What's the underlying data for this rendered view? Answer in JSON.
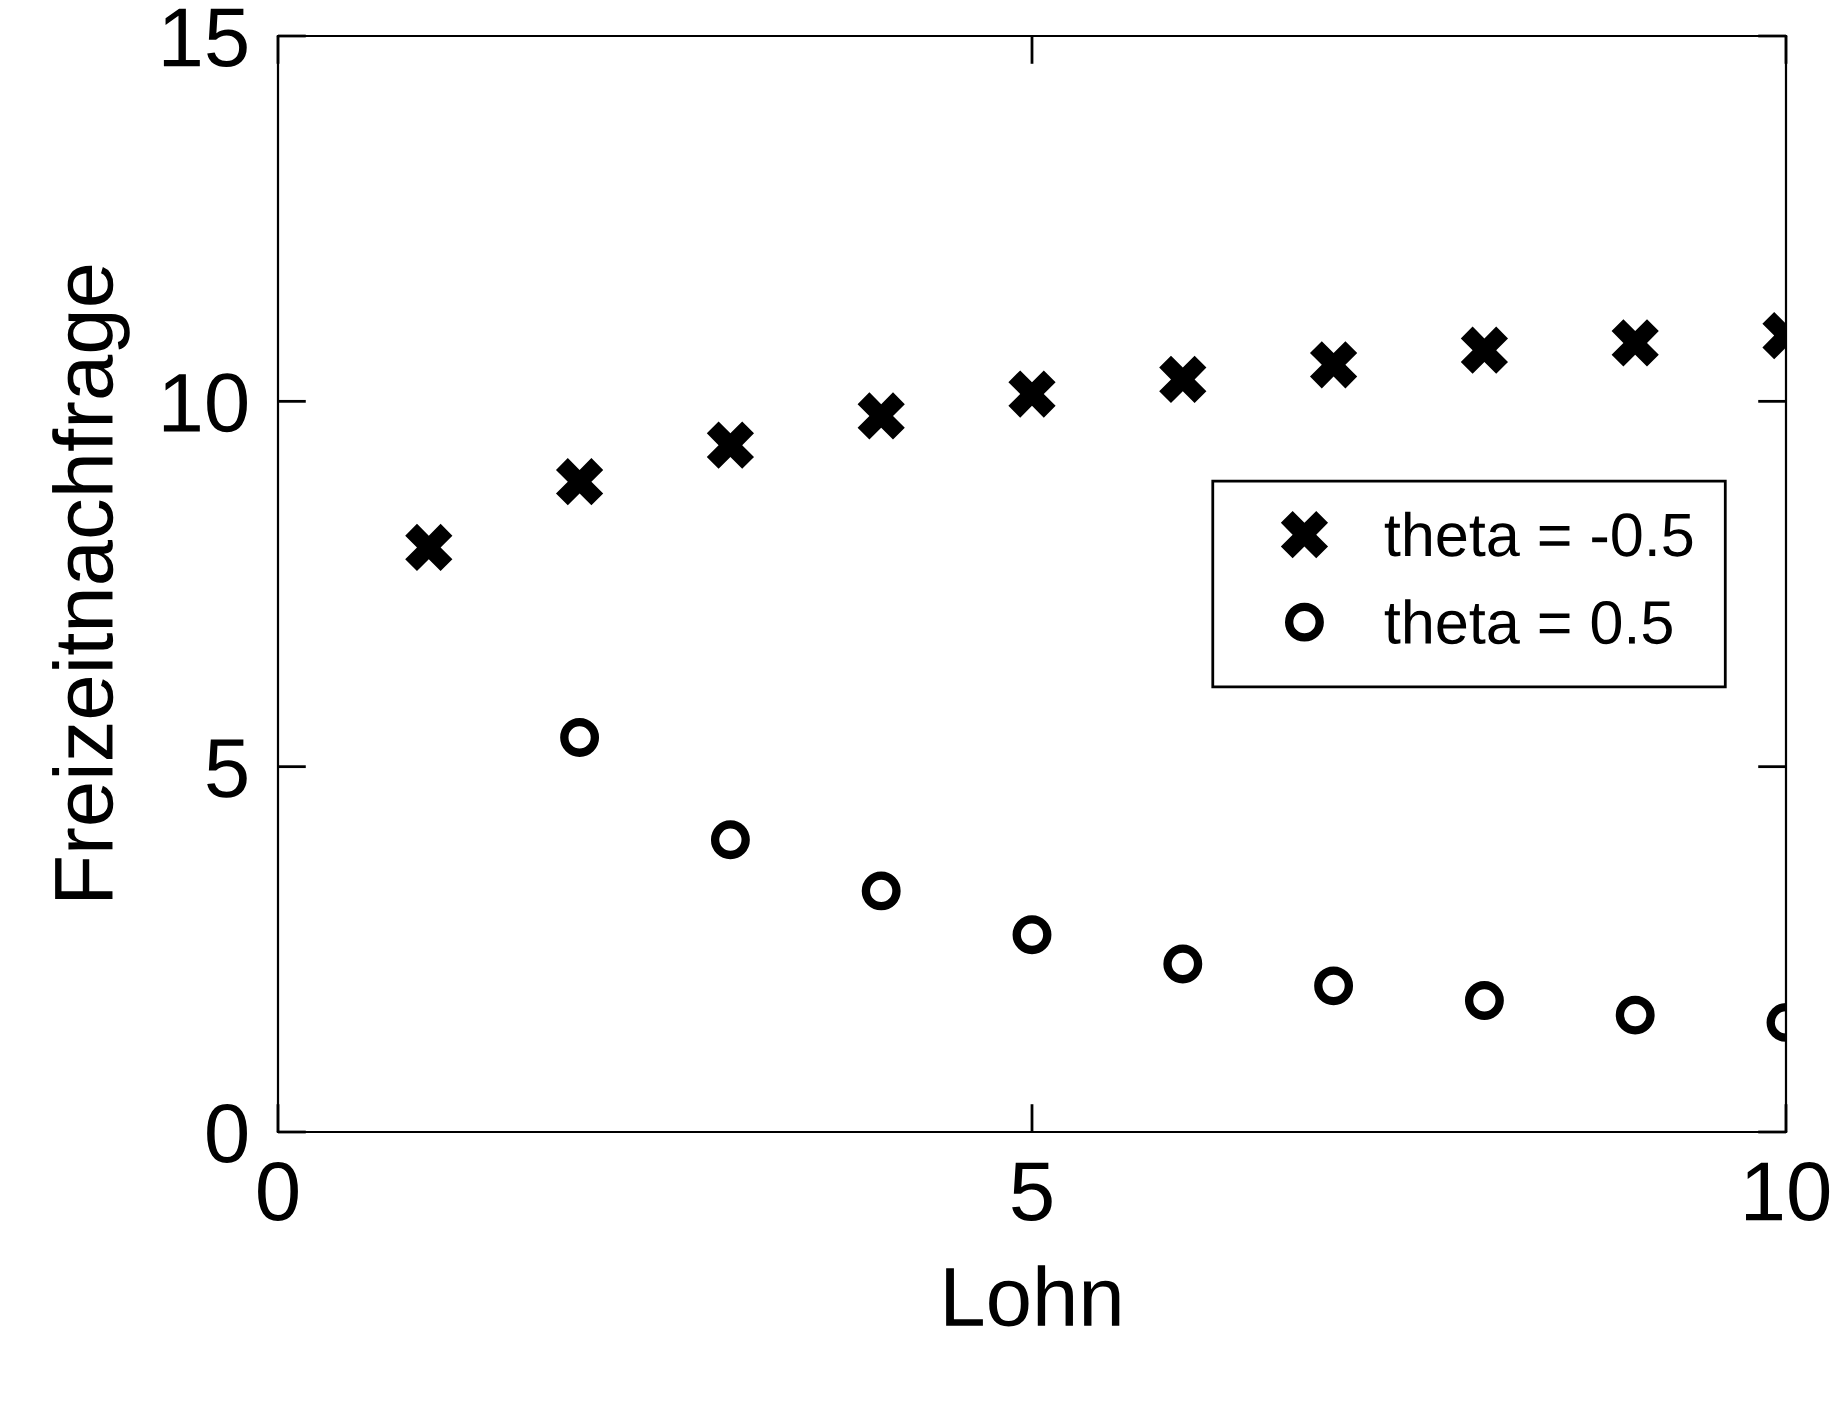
{
  "chart_data": {
    "type": "scatter",
    "xlabel": "Lohn",
    "ylabel": "Freizeitnachfrage",
    "x": [
      1,
      2,
      3,
      4,
      5,
      6,
      7,
      8,
      9,
      10
    ],
    "series": [
      {
        "name": "theta = -0.5",
        "color": "#000000",
        "marker": "cross",
        "values": [
          8.0,
          8.9,
          9.4,
          9.8,
          10.1,
          10.3,
          10.5,
          10.7,
          10.8,
          10.9
        ]
      },
      {
        "name": "theta = 0.5",
        "color": "#000000",
        "marker": "circle",
        "values": [
          null,
          5.4,
          4.0,
          3.3,
          2.7,
          2.3,
          2.0,
          1.8,
          1.6,
          1.5
        ]
      }
    ],
    "xlim": [
      0,
      10
    ],
    "xticks": [
      0,
      5,
      10
    ],
    "ylim": [
      0,
      15
    ],
    "yticks": [
      0,
      5,
      10,
      15
    ],
    "grid": false,
    "legend": "right"
  }
}
